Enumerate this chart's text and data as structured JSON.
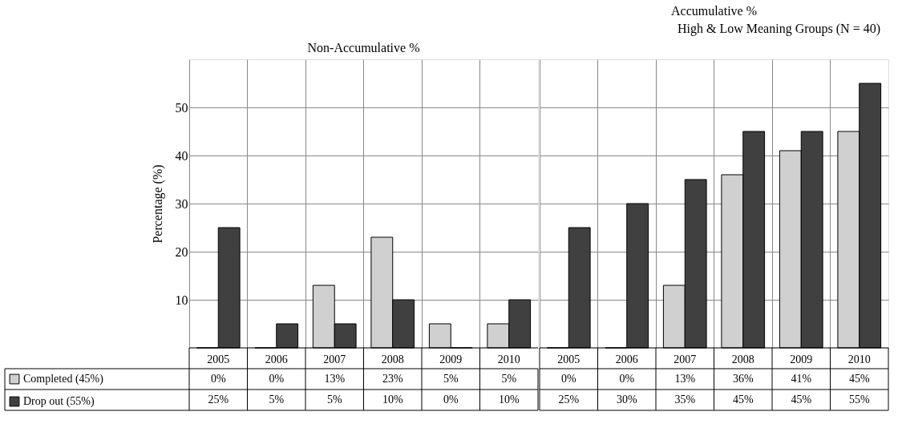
{
  "chart_data": [
    {
      "type": "bar",
      "subtitle": "Non-Accumulative %",
      "ylabel": "Percentage (%)",
      "categories": [
        "2005",
        "2006",
        "2007",
        "2008",
        "2009",
        "2010"
      ],
      "ylim": [
        0,
        60
      ],
      "yticks": [
        10,
        20,
        30,
        40,
        50
      ],
      "grid": true,
      "legend": "bottom left",
      "series": [
        {
          "name": "Completed (45%)",
          "color": "#d0d0d0",
          "values": [
            0,
            0,
            13,
            23,
            5,
            5
          ],
          "value_labels": [
            "0%",
            "0%",
            "13%",
            "23%",
            "5%",
            "5%"
          ]
        },
        {
          "name": "Drop out (55%)",
          "color": "#404040",
          "values": [
            25,
            5,
            5,
            10,
            0,
            10
          ],
          "value_labels": [
            "25%",
            "5%",
            "5%",
            "10%",
            "0%",
            "10%"
          ]
        }
      ]
    },
    {
      "type": "bar",
      "title": "High & Low Meaning Groups (N = 40)",
      "subtitle": "Accumulative %",
      "categories": [
        "2005",
        "2006",
        "2007",
        "2008",
        "2009",
        "2010"
      ],
      "ylim": [
        0,
        60
      ],
      "yticks": [
        10,
        20,
        30,
        40,
        50
      ],
      "grid": true,
      "tick_labels": "x",
      "series": [
        {
          "name": "Completed (45%)",
          "color": "#d0d0d0",
          "values": [
            0,
            0,
            13,
            36,
            41,
            45
          ],
          "value_labels": [
            "0%",
            "0%",
            "13%",
            "36%",
            "41%",
            "45%"
          ]
        },
        {
          "name": "Drop out (55%)",
          "color": "#404040",
          "values": [
            25,
            30,
            35,
            45,
            45,
            55
          ],
          "value_labels": [
            "25%",
            "30%",
            "35%",
            "45%",
            "45%",
            "55%"
          ]
        }
      ]
    }
  ]
}
